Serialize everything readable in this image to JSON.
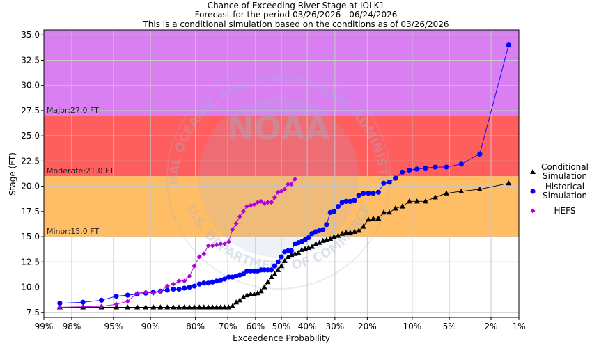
{
  "titles": [
    "Chance of Exceeding River Stage at IOLK1",
    "Forecast for the period 03/26/2026 - 06/24/2026",
    "This is a conditional simulation based on the conditions as of 03/26/2026"
  ],
  "colors": {
    "major_band": "#d97ff2",
    "moderate_band": "#ff5e5e",
    "minor_band": "#ffbd66",
    "grid": "#c8c8c8",
    "conditional": "#000000",
    "historical": "#0000ff",
    "hefs": "#b000e0",
    "watermark": "#9fb3d6"
  },
  "watermark": {
    "logo_text": "NOAA",
    "ring_top": "NATIONAL OCEANIC AND ATMOSPHERIC ADMINISTRATION",
    "ring_bottom": "U.S. DEPARTMENT OF COMMERCE"
  },
  "chart_data": {
    "type": "line",
    "xlabel": "Exceedence Probability",
    "ylabel": "Stage (FT)",
    "x_scale": "normal-probability",
    "x_ticks": [
      {
        "p": 99,
        "label": "99%"
      },
      {
        "p": 98,
        "label": "98%"
      },
      {
        "p": 95,
        "label": "95%"
      },
      {
        "p": 90,
        "label": "90%"
      },
      {
        "p": 80,
        "label": "80%"
      },
      {
        "p": 70,
        "label": "70%"
      },
      {
        "p": 60,
        "label": "60%"
      },
      {
        "p": 50,
        "label": "50%"
      },
      {
        "p": 40,
        "label": "40%"
      },
      {
        "p": 30,
        "label": "30%"
      },
      {
        "p": 20,
        "label": "20%"
      },
      {
        "p": 10,
        "label": "10%"
      },
      {
        "p": 5,
        "label": "5%"
      },
      {
        "p": 2,
        "label": "2%"
      },
      {
        "p": 1,
        "label": "1%"
      }
    ],
    "xlim": [
      99,
      1
    ],
    "ylim": [
      7.0,
      35.5
    ],
    "y_ticks": [
      7.5,
      10.0,
      12.5,
      15.0,
      17.5,
      20.0,
      22.5,
      25.0,
      27.5,
      30.0,
      32.5,
      35.0
    ],
    "y_tick_labels": [
      "7.5",
      "10.0",
      "12.5",
      "15.0",
      "17.5",
      "20.0",
      "22.5",
      "25.0",
      "27.5",
      "30.0",
      "32.5",
      "35.0"
    ],
    "grid": true,
    "legend_position": "right",
    "flood_categories": [
      {
        "name": "Minor",
        "label": "Minor:15.0 FT",
        "stage": 15.0,
        "upper": 21.0
      },
      {
        "name": "Moderate",
        "label": "Moderate:21.0 FT",
        "stage": 21.0,
        "upper": 27.0
      },
      {
        "name": "Major",
        "label": "Major:27.0 FT",
        "stage": 27.0,
        "upper": 35.5
      }
    ],
    "series": [
      {
        "name": "Conditional Simulation",
        "legend_lines": [
          "Conditional",
          "Simulation"
        ],
        "marker": "triangle",
        "points": [
          [
            98.5,
            8.0
          ],
          [
            97.4,
            8.0
          ],
          [
            96.1,
            8.0
          ],
          [
            94.7,
            8.0
          ],
          [
            93.4,
            8.0
          ],
          [
            92.1,
            8.0
          ],
          [
            90.8,
            8.0
          ],
          [
            89.5,
            8.0
          ],
          [
            88.2,
            8.0
          ],
          [
            86.8,
            8.0
          ],
          [
            85.5,
            8.0
          ],
          [
            84.2,
            8.0
          ],
          [
            82.9,
            8.0
          ],
          [
            81.6,
            8.0
          ],
          [
            80.3,
            8.0
          ],
          [
            78.9,
            8.0
          ],
          [
            77.6,
            8.0
          ],
          [
            76.3,
            8.0
          ],
          [
            75.0,
            8.0
          ],
          [
            73.7,
            8.0
          ],
          [
            72.4,
            8.0
          ],
          [
            71.1,
            8.0
          ],
          [
            69.7,
            8.0
          ],
          [
            68.4,
            8.1
          ],
          [
            67.1,
            8.5
          ],
          [
            65.8,
            8.7
          ],
          [
            64.5,
            9.0
          ],
          [
            63.2,
            9.2
          ],
          [
            61.8,
            9.3
          ],
          [
            60.5,
            9.3
          ],
          [
            59.2,
            9.4
          ],
          [
            57.9,
            9.6
          ],
          [
            56.6,
            10.0
          ],
          [
            55.3,
            10.5
          ],
          [
            53.9,
            11.0
          ],
          [
            52.6,
            11.3
          ],
          [
            51.3,
            11.7
          ],
          [
            50.0,
            12.1
          ],
          [
            48.7,
            12.6
          ],
          [
            47.4,
            13.0
          ],
          [
            46.1,
            13.2
          ],
          [
            44.7,
            13.3
          ],
          [
            43.4,
            13.4
          ],
          [
            42.1,
            13.7
          ],
          [
            40.8,
            13.8
          ],
          [
            39.5,
            13.9
          ],
          [
            38.2,
            14.0
          ],
          [
            36.8,
            14.3
          ],
          [
            35.5,
            14.4
          ],
          [
            34.2,
            14.6
          ],
          [
            32.9,
            14.7
          ],
          [
            31.6,
            14.8
          ],
          [
            30.3,
            15.0
          ],
          [
            28.9,
            15.1
          ],
          [
            27.6,
            15.3
          ],
          [
            26.3,
            15.4
          ],
          [
            25.0,
            15.4
          ],
          [
            23.7,
            15.5
          ],
          [
            22.4,
            15.6
          ],
          [
            21.1,
            16.0
          ],
          [
            19.7,
            16.7
          ],
          [
            18.4,
            16.8
          ],
          [
            17.1,
            16.8
          ],
          [
            15.8,
            17.4
          ],
          [
            14.5,
            17.4
          ],
          [
            13.2,
            17.8
          ],
          [
            11.8,
            18.0
          ],
          [
            10.5,
            18.5
          ],
          [
            9.2,
            18.5
          ],
          [
            7.9,
            18.5
          ],
          [
            6.6,
            18.9
          ],
          [
            5.3,
            19.3
          ],
          [
            3.9,
            19.5
          ],
          [
            2.6,
            19.7
          ],
          [
            1.3,
            20.3
          ]
        ]
      },
      {
        "name": "Historical Simulation",
        "legend_lines": [
          "Historical",
          "Simulation"
        ],
        "marker": "circle",
        "points": [
          [
            98.5,
            8.4
          ],
          [
            97.4,
            8.5
          ],
          [
            96.1,
            8.7
          ],
          [
            94.7,
            9.1
          ],
          [
            93.4,
            9.2
          ],
          [
            92.1,
            9.3
          ],
          [
            90.8,
            9.4
          ],
          [
            89.5,
            9.5
          ],
          [
            88.2,
            9.6
          ],
          [
            86.8,
            9.7
          ],
          [
            85.5,
            9.8
          ],
          [
            84.2,
            9.8
          ],
          [
            82.9,
            9.9
          ],
          [
            81.6,
            10.0
          ],
          [
            80.3,
            10.1
          ],
          [
            78.9,
            10.3
          ],
          [
            77.6,
            10.4
          ],
          [
            76.3,
            10.4
          ],
          [
            75.0,
            10.5
          ],
          [
            73.7,
            10.6
          ],
          [
            72.4,
            10.7
          ],
          [
            71.1,
            10.8
          ],
          [
            69.7,
            11.0
          ],
          [
            68.4,
            11.0
          ],
          [
            67.1,
            11.1
          ],
          [
            65.8,
            11.2
          ],
          [
            64.5,
            11.3
          ],
          [
            63.2,
            11.6
          ],
          [
            61.8,
            11.6
          ],
          [
            60.5,
            11.6
          ],
          [
            59.2,
            11.6
          ],
          [
            57.9,
            11.7
          ],
          [
            56.6,
            11.7
          ],
          [
            55.3,
            11.7
          ],
          [
            53.9,
            11.7
          ],
          [
            52.6,
            12.1
          ],
          [
            51.3,
            12.5
          ],
          [
            50.0,
            13.0
          ],
          [
            48.7,
            13.5
          ],
          [
            47.4,
            13.6
          ],
          [
            46.1,
            13.6
          ],
          [
            44.7,
            14.3
          ],
          [
            43.4,
            14.4
          ],
          [
            42.1,
            14.5
          ],
          [
            40.8,
            14.7
          ],
          [
            39.5,
            14.9
          ],
          [
            38.2,
            15.3
          ],
          [
            36.8,
            15.5
          ],
          [
            35.5,
            15.6
          ],
          [
            34.2,
            15.7
          ],
          [
            32.9,
            16.2
          ],
          [
            31.6,
            17.4
          ],
          [
            30.3,
            17.5
          ],
          [
            28.9,
            18.0
          ],
          [
            27.6,
            18.4
          ],
          [
            26.3,
            18.5
          ],
          [
            25.0,
            18.5
          ],
          [
            23.7,
            18.6
          ],
          [
            22.4,
            19.1
          ],
          [
            21.1,
            19.3
          ],
          [
            19.7,
            19.3
          ],
          [
            18.4,
            19.3
          ],
          [
            17.1,
            19.4
          ],
          [
            15.8,
            20.3
          ],
          [
            14.5,
            20.4
          ],
          [
            13.2,
            20.8
          ],
          [
            11.8,
            21.4
          ],
          [
            10.5,
            21.6
          ],
          [
            9.2,
            21.7
          ],
          [
            7.9,
            21.8
          ],
          [
            6.6,
            21.9
          ],
          [
            5.3,
            21.9
          ],
          [
            3.9,
            22.2
          ],
          [
            2.6,
            23.2
          ],
          [
            1.3,
            34.0
          ]
        ]
      },
      {
        "name": "HEFS",
        "legend_lines": [
          "HEFS"
        ],
        "marker": "diamond",
        "points": [
          [
            98.5,
            8.0
          ],
          [
            96.1,
            8.1
          ],
          [
            94.7,
            8.3
          ],
          [
            93.4,
            8.6
          ],
          [
            92.1,
            9.4
          ],
          [
            90.8,
            9.5
          ],
          [
            89.5,
            9.4
          ],
          [
            88.2,
            9.6
          ],
          [
            86.8,
            10.1
          ],
          [
            85.5,
            10.3
          ],
          [
            84.2,
            10.6
          ],
          [
            82.9,
            10.6
          ],
          [
            81.6,
            11.1
          ],
          [
            80.3,
            12.1
          ],
          [
            78.9,
            13.0
          ],
          [
            77.6,
            13.3
          ],
          [
            76.3,
            14.1
          ],
          [
            75.0,
            14.1
          ],
          [
            73.7,
            14.2
          ],
          [
            72.4,
            14.3
          ],
          [
            71.1,
            14.3
          ],
          [
            69.7,
            14.5
          ],
          [
            68.4,
            15.7
          ],
          [
            67.1,
            16.3
          ],
          [
            65.8,
            17.0
          ],
          [
            64.5,
            17.5
          ],
          [
            63.2,
            18.0
          ],
          [
            61.8,
            18.1
          ],
          [
            60.5,
            18.2
          ],
          [
            59.2,
            18.4
          ],
          [
            57.9,
            18.5
          ],
          [
            56.6,
            18.3
          ],
          [
            55.3,
            18.4
          ],
          [
            53.9,
            18.4
          ],
          [
            52.6,
            18.9
          ],
          [
            51.3,
            19.4
          ],
          [
            50.0,
            19.5
          ],
          [
            48.7,
            19.7
          ],
          [
            47.4,
            20.2
          ],
          [
            46.1,
            20.2
          ],
          [
            44.7,
            20.7
          ]
        ]
      }
    ]
  }
}
